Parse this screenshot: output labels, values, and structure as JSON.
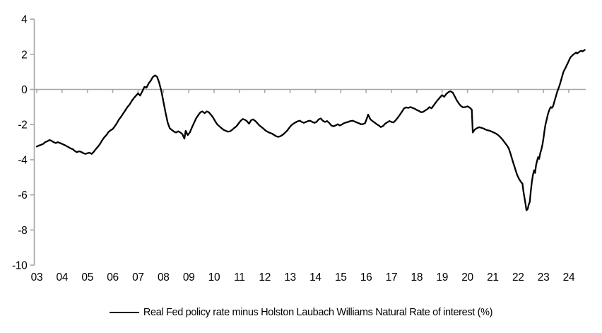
{
  "chart_data": {
    "type": "line",
    "title": "",
    "xlabel": "",
    "ylabel": "",
    "xlim": [
      2003,
      2024.75
    ],
    "ylim": [
      -10,
      4
    ],
    "y_ticks": [
      4,
      2,
      0,
      -2,
      -4,
      -6,
      -8,
      -10
    ],
    "x_tick_years": [
      2003,
      2004,
      2005,
      2006,
      2007,
      2008,
      2009,
      2010,
      2011,
      2012,
      2013,
      2014,
      2015,
      2016,
      2017,
      2018,
      2019,
      2020,
      2021,
      2022,
      2023,
      2024
    ],
    "x_tick_labels": [
      "03",
      "04",
      "05",
      "06",
      "07",
      "08",
      "09",
      "10",
      "11",
      "12",
      "13",
      "14",
      "15",
      "16",
      "17",
      "18",
      "19",
      "20",
      "21",
      "22",
      "23",
      "24"
    ],
    "grid": false,
    "zero_line": true,
    "axis_color": "#a6a6a6",
    "line_color": "#000000",
    "legend_position": "bottom-center",
    "series": [
      {
        "name": "Real Fed policy rate minus Holston Laubach Williams Natural Rate of interest (%)",
        "color": "#000000",
        "points": [
          [
            2003.0,
            -3.25
          ],
          [
            2003.08,
            -3.2
          ],
          [
            2003.17,
            -3.15
          ],
          [
            2003.25,
            -3.1
          ],
          [
            2003.33,
            -3.0
          ],
          [
            2003.42,
            -2.95
          ],
          [
            2003.5,
            -2.88
          ],
          [
            2003.58,
            -2.92
          ],
          [
            2003.67,
            -3.0
          ],
          [
            2003.75,
            -3.05
          ],
          [
            2003.83,
            -3.0
          ],
          [
            2003.92,
            -3.05
          ],
          [
            2004.0,
            -3.1
          ],
          [
            2004.08,
            -3.15
          ],
          [
            2004.17,
            -3.22
          ],
          [
            2004.25,
            -3.28
          ],
          [
            2004.33,
            -3.35
          ],
          [
            2004.42,
            -3.4
          ],
          [
            2004.5,
            -3.5
          ],
          [
            2004.58,
            -3.57
          ],
          [
            2004.67,
            -3.52
          ],
          [
            2004.75,
            -3.55
          ],
          [
            2004.83,
            -3.62
          ],
          [
            2004.92,
            -3.67
          ],
          [
            2005.0,
            -3.63
          ],
          [
            2005.08,
            -3.6
          ],
          [
            2005.17,
            -3.67
          ],
          [
            2005.25,
            -3.55
          ],
          [
            2005.33,
            -3.4
          ],
          [
            2005.42,
            -3.25
          ],
          [
            2005.5,
            -3.1
          ],
          [
            2005.58,
            -2.9
          ],
          [
            2005.67,
            -2.72
          ],
          [
            2005.75,
            -2.6
          ],
          [
            2005.83,
            -2.42
          ],
          [
            2005.92,
            -2.32
          ],
          [
            2006.0,
            -2.25
          ],
          [
            2006.08,
            -2.1
          ],
          [
            2006.17,
            -1.9
          ],
          [
            2006.25,
            -1.7
          ],
          [
            2006.33,
            -1.55
          ],
          [
            2006.42,
            -1.35
          ],
          [
            2006.5,
            -1.18
          ],
          [
            2006.58,
            -1.0
          ],
          [
            2006.67,
            -0.85
          ],
          [
            2006.75,
            -0.65
          ],
          [
            2006.83,
            -0.5
          ],
          [
            2006.92,
            -0.35
          ],
          [
            2007.0,
            -0.22
          ],
          [
            2007.08,
            -0.35
          ],
          [
            2007.17,
            -0.1
          ],
          [
            2007.25,
            0.15
          ],
          [
            2007.33,
            0.1
          ],
          [
            2007.42,
            0.35
          ],
          [
            2007.5,
            0.5
          ],
          [
            2007.58,
            0.7
          ],
          [
            2007.67,
            0.8
          ],
          [
            2007.75,
            0.72
          ],
          [
            2007.83,
            0.4
          ],
          [
            2007.92,
            -0.1
          ],
          [
            2008.0,
            -0.7
          ],
          [
            2008.08,
            -1.3
          ],
          [
            2008.17,
            -1.9
          ],
          [
            2008.25,
            -2.2
          ],
          [
            2008.33,
            -2.3
          ],
          [
            2008.42,
            -2.4
          ],
          [
            2008.5,
            -2.45
          ],
          [
            2008.58,
            -2.38
          ],
          [
            2008.67,
            -2.45
          ],
          [
            2008.75,
            -2.55
          ],
          [
            2008.83,
            -2.8
          ],
          [
            2008.88,
            -2.35
          ],
          [
            2008.96,
            -2.6
          ],
          [
            2009.04,
            -2.45
          ],
          [
            2009.13,
            -2.15
          ],
          [
            2009.21,
            -1.9
          ],
          [
            2009.29,
            -1.65
          ],
          [
            2009.38,
            -1.45
          ],
          [
            2009.46,
            -1.3
          ],
          [
            2009.54,
            -1.25
          ],
          [
            2009.63,
            -1.35
          ],
          [
            2009.71,
            -1.25
          ],
          [
            2009.79,
            -1.3
          ],
          [
            2009.88,
            -1.45
          ],
          [
            2009.96,
            -1.6
          ],
          [
            2010.04,
            -1.8
          ],
          [
            2010.13,
            -2.0
          ],
          [
            2010.21,
            -2.1
          ],
          [
            2010.29,
            -2.2
          ],
          [
            2010.38,
            -2.3
          ],
          [
            2010.46,
            -2.35
          ],
          [
            2010.54,
            -2.4
          ],
          [
            2010.63,
            -2.38
          ],
          [
            2010.71,
            -2.3
          ],
          [
            2010.79,
            -2.2
          ],
          [
            2010.88,
            -2.1
          ],
          [
            2010.96,
            -1.95
          ],
          [
            2011.04,
            -1.8
          ],
          [
            2011.13,
            -1.68
          ],
          [
            2011.21,
            -1.72
          ],
          [
            2011.29,
            -1.8
          ],
          [
            2011.38,
            -1.95
          ],
          [
            2011.46,
            -1.75
          ],
          [
            2011.54,
            -1.7
          ],
          [
            2011.63,
            -1.8
          ],
          [
            2011.71,
            -1.92
          ],
          [
            2011.79,
            -2.05
          ],
          [
            2011.88,
            -2.15
          ],
          [
            2011.96,
            -2.25
          ],
          [
            2012.04,
            -2.35
          ],
          [
            2012.13,
            -2.42
          ],
          [
            2012.21,
            -2.48
          ],
          [
            2012.29,
            -2.52
          ],
          [
            2012.38,
            -2.6
          ],
          [
            2012.46,
            -2.67
          ],
          [
            2012.54,
            -2.7
          ],
          [
            2012.63,
            -2.65
          ],
          [
            2012.71,
            -2.58
          ],
          [
            2012.79,
            -2.48
          ],
          [
            2012.88,
            -2.35
          ],
          [
            2012.96,
            -2.2
          ],
          [
            2013.04,
            -2.05
          ],
          [
            2013.13,
            -1.95
          ],
          [
            2013.21,
            -1.88
          ],
          [
            2013.29,
            -1.82
          ],
          [
            2013.38,
            -1.78
          ],
          [
            2013.46,
            -1.85
          ],
          [
            2013.54,
            -1.9
          ],
          [
            2013.63,
            -1.85
          ],
          [
            2013.71,
            -1.8
          ],
          [
            2013.79,
            -1.78
          ],
          [
            2013.88,
            -1.85
          ],
          [
            2013.96,
            -1.9
          ],
          [
            2014.04,
            -1.85
          ],
          [
            2014.13,
            -1.7
          ],
          [
            2014.21,
            -1.65
          ],
          [
            2014.29,
            -1.78
          ],
          [
            2014.38,
            -1.85
          ],
          [
            2014.46,
            -1.8
          ],
          [
            2014.54,
            -1.9
          ],
          [
            2014.63,
            -2.05
          ],
          [
            2014.71,
            -2.1
          ],
          [
            2014.79,
            -2.05
          ],
          [
            2014.88,
            -1.98
          ],
          [
            2014.96,
            -2.05
          ],
          [
            2015.04,
            -2.0
          ],
          [
            2015.13,
            -1.92
          ],
          [
            2015.21,
            -1.88
          ],
          [
            2015.29,
            -1.85
          ],
          [
            2015.38,
            -1.8
          ],
          [
            2015.46,
            -1.78
          ],
          [
            2015.54,
            -1.82
          ],
          [
            2015.63,
            -1.88
          ],
          [
            2015.71,
            -1.92
          ],
          [
            2015.79,
            -1.98
          ],
          [
            2015.88,
            -1.97
          ],
          [
            2015.96,
            -1.92
          ],
          [
            2016.04,
            -1.6
          ],
          [
            2016.08,
            -1.43
          ],
          [
            2016.17,
            -1.7
          ],
          [
            2016.25,
            -1.8
          ],
          [
            2016.33,
            -1.88
          ],
          [
            2016.42,
            -1.98
          ],
          [
            2016.5,
            -2.05
          ],
          [
            2016.58,
            -2.14
          ],
          [
            2016.67,
            -2.08
          ],
          [
            2016.75,
            -1.95
          ],
          [
            2016.83,
            -1.88
          ],
          [
            2016.92,
            -1.8
          ],
          [
            2017.0,
            -1.85
          ],
          [
            2017.08,
            -1.88
          ],
          [
            2017.17,
            -1.75
          ],
          [
            2017.25,
            -1.6
          ],
          [
            2017.33,
            -1.45
          ],
          [
            2017.42,
            -1.25
          ],
          [
            2017.5,
            -1.08
          ],
          [
            2017.58,
            -1.02
          ],
          [
            2017.67,
            -1.05
          ],
          [
            2017.75,
            -1.0
          ],
          [
            2017.83,
            -1.05
          ],
          [
            2017.92,
            -1.1
          ],
          [
            2018.0,
            -1.17
          ],
          [
            2018.08,
            -1.22
          ],
          [
            2018.17,
            -1.3
          ],
          [
            2018.25,
            -1.28
          ],
          [
            2018.33,
            -1.2
          ],
          [
            2018.42,
            -1.12
          ],
          [
            2018.5,
            -1.0
          ],
          [
            2018.58,
            -1.08
          ],
          [
            2018.67,
            -0.9
          ],
          [
            2018.75,
            -0.75
          ],
          [
            2018.83,
            -0.6
          ],
          [
            2018.92,
            -0.45
          ],
          [
            2019.0,
            -0.32
          ],
          [
            2019.08,
            -0.42
          ],
          [
            2019.17,
            -0.25
          ],
          [
            2019.25,
            -0.15
          ],
          [
            2019.33,
            -0.1
          ],
          [
            2019.42,
            -0.18
          ],
          [
            2019.5,
            -0.4
          ],
          [
            2019.58,
            -0.62
          ],
          [
            2019.67,
            -0.82
          ],
          [
            2019.75,
            -0.95
          ],
          [
            2019.83,
            -1.02
          ],
          [
            2019.92,
            -1.0
          ],
          [
            2020.0,
            -0.96
          ],
          [
            2020.08,
            -1.02
          ],
          [
            2020.17,
            -1.15
          ],
          [
            2020.21,
            -2.45
          ],
          [
            2020.29,
            -2.28
          ],
          [
            2020.38,
            -2.2
          ],
          [
            2020.46,
            -2.15
          ],
          [
            2020.54,
            -2.18
          ],
          [
            2020.63,
            -2.22
          ],
          [
            2020.71,
            -2.28
          ],
          [
            2020.79,
            -2.32
          ],
          [
            2020.88,
            -2.35
          ],
          [
            2020.96,
            -2.4
          ],
          [
            2021.04,
            -2.45
          ],
          [
            2021.13,
            -2.52
          ],
          [
            2021.21,
            -2.6
          ],
          [
            2021.29,
            -2.7
          ],
          [
            2021.38,
            -2.85
          ],
          [
            2021.46,
            -3.0
          ],
          [
            2021.54,
            -3.15
          ],
          [
            2021.63,
            -3.35
          ],
          [
            2021.71,
            -3.7
          ],
          [
            2021.79,
            -4.1
          ],
          [
            2021.88,
            -4.5
          ],
          [
            2021.96,
            -4.85
          ],
          [
            2022.04,
            -5.1
          ],
          [
            2022.13,
            -5.3
          ],
          [
            2022.17,
            -5.35
          ],
          [
            2022.21,
            -5.8
          ],
          [
            2022.29,
            -6.5
          ],
          [
            2022.33,
            -6.88
          ],
          [
            2022.38,
            -6.8
          ],
          [
            2022.42,
            -6.55
          ],
          [
            2022.46,
            -6.4
          ],
          [
            2022.5,
            -5.8
          ],
          [
            2022.54,
            -5.3
          ],
          [
            2022.58,
            -4.9
          ],
          [
            2022.63,
            -4.6
          ],
          [
            2022.67,
            -4.75
          ],
          [
            2022.71,
            -4.3
          ],
          [
            2022.75,
            -4.05
          ],
          [
            2022.79,
            -3.85
          ],
          [
            2022.83,
            -3.95
          ],
          [
            2022.88,
            -3.6
          ],
          [
            2022.92,
            -3.4
          ],
          [
            2022.96,
            -3.15
          ],
          [
            2023.0,
            -2.8
          ],
          [
            2023.04,
            -2.35
          ],
          [
            2023.08,
            -2.0
          ],
          [
            2023.13,
            -1.7
          ],
          [
            2023.17,
            -1.45
          ],
          [
            2023.21,
            -1.25
          ],
          [
            2023.25,
            -1.1
          ],
          [
            2023.29,
            -1.0
          ],
          [
            2023.33,
            -1.05
          ],
          [
            2023.38,
            -0.95
          ],
          [
            2023.42,
            -0.75
          ],
          [
            2023.46,
            -0.55
          ],
          [
            2023.5,
            -0.35
          ],
          [
            2023.54,
            -0.15
          ],
          [
            2023.58,
            0.0
          ],
          [
            2023.63,
            0.2
          ],
          [
            2023.67,
            0.4
          ],
          [
            2023.71,
            0.6
          ],
          [
            2023.75,
            0.8
          ],
          [
            2023.79,
            1.0
          ],
          [
            2023.83,
            1.12
          ],
          [
            2023.88,
            1.25
          ],
          [
            2023.92,
            1.38
          ],
          [
            2023.96,
            1.5
          ],
          [
            2024.0,
            1.62
          ],
          [
            2024.04,
            1.75
          ],
          [
            2024.08,
            1.85
          ],
          [
            2024.13,
            1.92
          ],
          [
            2024.17,
            1.98
          ],
          [
            2024.21,
            2.02
          ],
          [
            2024.25,
            2.06
          ],
          [
            2024.29,
            2.1
          ],
          [
            2024.33,
            2.05
          ],
          [
            2024.38,
            2.1
          ],
          [
            2024.42,
            2.15
          ],
          [
            2024.46,
            2.18
          ],
          [
            2024.5,
            2.2
          ],
          [
            2024.54,
            2.16
          ],
          [
            2024.58,
            2.2
          ],
          [
            2024.63,
            2.25
          ]
        ]
      }
    ]
  },
  "legend": {
    "label": "Real Fed policy rate minus Holston Laubach Williams Natural Rate of interest (%)"
  }
}
